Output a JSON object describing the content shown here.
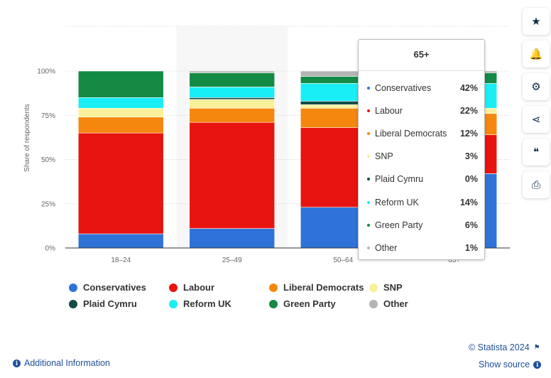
{
  "chart_data": {
    "type": "bar",
    "stacked": true,
    "categories": [
      "18-24",
      "25-49",
      "50-64",
      "65+"
    ],
    "ylabel": "Share of respondents",
    "yticks": [
      "0%",
      "25%",
      "50%",
      "75%",
      "100%"
    ],
    "ylim": [
      0,
      100
    ],
    "grid": true,
    "legend_position": "bottom",
    "series": [
      {
        "name": "Conservatives",
        "color": "#2f73d8",
        "values": [
          8,
          11,
          23,
          42
        ]
      },
      {
        "name": "Labour",
        "color": "#e8140f",
        "values": [
          57,
          60,
          45,
          22
        ]
      },
      {
        "name": "Liberal Democrats",
        "color": "#f5870f",
        "values": [
          9,
          8,
          11,
          12
        ]
      },
      {
        "name": "SNP",
        "color": "#faf099",
        "values": [
          5,
          5,
          2,
          3
        ]
      },
      {
        "name": "Plaid Cymru",
        "color": "#0f4d45",
        "values": [
          0,
          1,
          2,
          0
        ]
      },
      {
        "name": "Reform UK",
        "color": "#19eef7",
        "values": [
          6,
          6,
          10,
          14
        ]
      },
      {
        "name": "Green Party",
        "color": "#148a45",
        "values": [
          15,
          8,
          4,
          6
        ]
      },
      {
        "name": "Other",
        "color": "#b4b4b4",
        "values": [
          0,
          1,
          3,
          1
        ]
      }
    ]
  },
  "tooltip": {
    "title": "65+",
    "rows": [
      {
        "name": "Conservatives",
        "value": "42%",
        "color": "#2f73d8"
      },
      {
        "name": "Labour",
        "value": "22%",
        "color": "#e8140f"
      },
      {
        "name": "Liberal Democrats",
        "value": "12%",
        "color": "#f5870f"
      },
      {
        "name": "SNP",
        "value": "3%",
        "color": "#faf099"
      },
      {
        "name": "Plaid Cymru",
        "value": "0%",
        "color": "#0f4d45"
      },
      {
        "name": "Reform UK",
        "value": "14%",
        "color": "#19eef7"
      },
      {
        "name": "Green Party",
        "value": "6%",
        "color": "#148a45"
      },
      {
        "name": "Other",
        "value": "1%",
        "color": "#b4b4b4"
      }
    ]
  },
  "sidebar_buttons": [
    {
      "icon": "star-icon",
      "glyph": "★"
    },
    {
      "icon": "bell-icon",
      "glyph": "🔔"
    },
    {
      "icon": "gear-icon",
      "glyph": "⚙"
    },
    {
      "icon": "share-icon",
      "glyph": "⋖"
    },
    {
      "icon": "quote-icon",
      "glyph": "❝"
    },
    {
      "icon": "print-icon",
      "glyph": "⎙"
    }
  ],
  "footer": {
    "copyright": "© Statista 2024",
    "show_source": "Show source",
    "additional_info": "Additional Information"
  }
}
